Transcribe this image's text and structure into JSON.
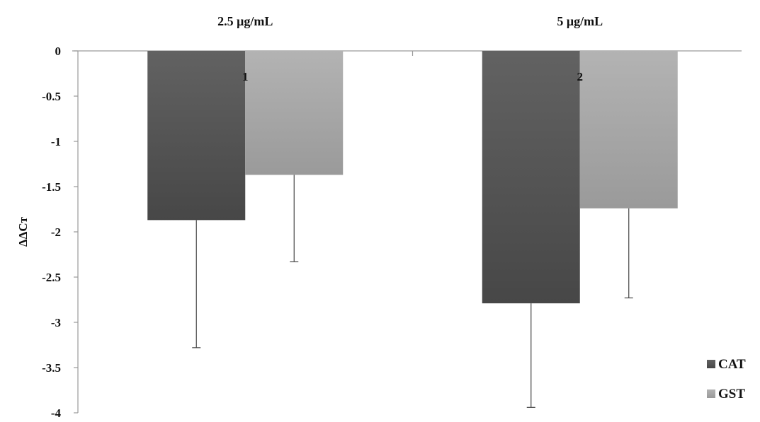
{
  "chart_data": {
    "type": "bar",
    "title": "",
    "xlabel": "",
    "ylabel": "ΔΔCт",
    "categories": [
      "2.5 μg/mL",
      "5 μg/mL"
    ],
    "bar_labels": [
      "1",
      "2"
    ],
    "ylim": [
      -4,
      0
    ],
    "yticks": [
      0,
      -0.5,
      -1,
      -1.5,
      -2,
      -2.5,
      -3,
      -3.5,
      -4
    ],
    "ytick_labels": [
      "0",
      "-0.5",
      "-1",
      "-1.5",
      "-2",
      "-2.5",
      "-3",
      "-3.5",
      "-4"
    ],
    "grid": false,
    "legend_position": "bottom-right",
    "series": [
      {
        "name": "CAT",
        "values": [
          -1.87,
          -2.79
        ],
        "error": [
          1.41,
          1.15
        ],
        "color": "#555555"
      },
      {
        "name": "GST",
        "values": [
          -1.37,
          -1.74
        ],
        "error": [
          0.96,
          0.99
        ],
        "color": "#a8a8a8"
      }
    ]
  }
}
